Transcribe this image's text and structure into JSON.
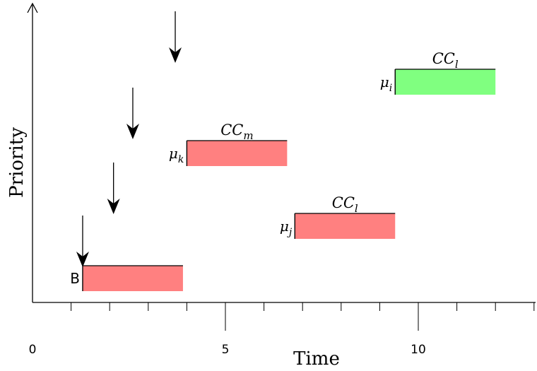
{
  "axes": {
    "x_label": "Time",
    "y_label": "Priority",
    "x_tick_labels": [
      {
        "value": 0,
        "label": "0"
      },
      {
        "value": 5,
        "label": "5"
      },
      {
        "value": 10,
        "label": "10"
      }
    ],
    "x_minor_tick_step": 1,
    "x_range": [
      0,
      13
    ]
  },
  "arrival_arrows": [
    {
      "name": "arrival-arrow-1",
      "x": 1.3
    },
    {
      "name": "arrival-arrow-2",
      "x": 2.1
    },
    {
      "name": "arrival-arrow-3",
      "x": 2.6
    },
    {
      "name": "arrival-arrow-4",
      "x": 3.7
    }
  ],
  "tasks": [
    {
      "name": "task-b",
      "side_label": "B",
      "side_label_style": "sans",
      "side_sub": "",
      "top_label": "",
      "top_sub": "",
      "start": 1.3,
      "end": 3.9,
      "priority_level": 1,
      "color": "#ff8080"
    },
    {
      "name": "task-mu-j",
      "side_label": "μ",
      "side_label_style": "serif",
      "side_sub": "j",
      "top_label": "CC",
      "top_sub": "l",
      "start": 6.8,
      "end": 9.4,
      "priority_level": 2,
      "color": "#ff8080"
    },
    {
      "name": "task-mu-k",
      "side_label": "μ",
      "side_label_style": "serif",
      "side_sub": "k",
      "top_label": "CC",
      "top_sub": "m",
      "start": 4.0,
      "end": 6.6,
      "priority_level": 3,
      "color": "#ff8080"
    },
    {
      "name": "task-mu-i",
      "side_label": "μ",
      "side_label_style": "serif",
      "side_sub": "i",
      "top_label": "CC",
      "top_sub": "l",
      "start": 9.4,
      "end": 12.0,
      "priority_level": 4,
      "color": "#80ff80"
    }
  ]
}
